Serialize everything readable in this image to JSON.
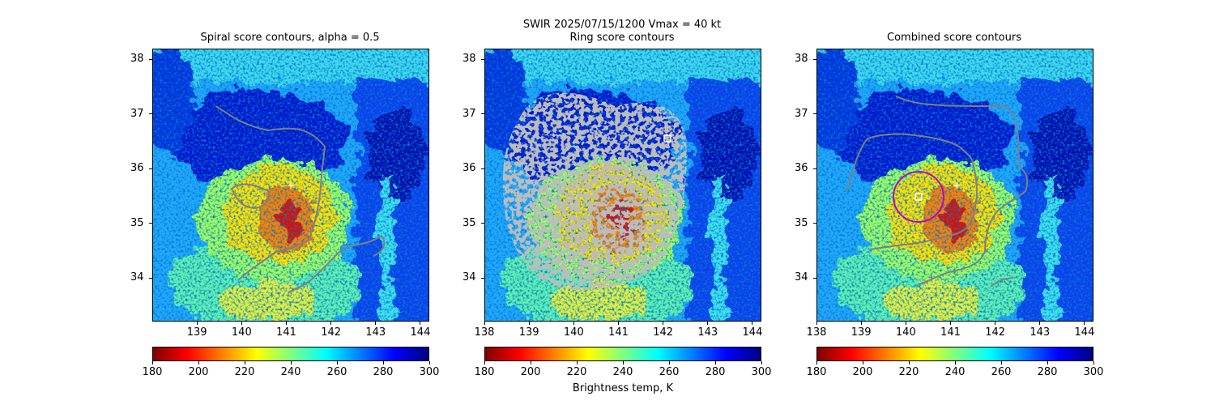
{
  "suptitle": "SWIR  2025/07/15/1200    Vmax = 40 kt",
  "chart_data": [
    {
      "type": "heatmap",
      "title": "Spiral score contours, alpha =  0.5",
      "xlim": [
        138,
        144.2
      ],
      "ylim": [
        33.2,
        38.2
      ],
      "xticks": [
        "139",
        "140",
        "141",
        "142",
        "143",
        "144"
      ],
      "yticks": [
        "34",
        "35",
        "36",
        "37",
        "38"
      ],
      "overlays": [
        "gray contour lines",
        "center marker (+) near 141.1E, 35.7N"
      ]
    },
    {
      "type": "heatmap",
      "title": "Ring score contours",
      "xlim": [
        138,
        144.2
      ],
      "ylim": [
        33.2,
        38.2
      ],
      "xticks": [
        "138",
        "139",
        "140",
        "141",
        "142",
        "143",
        "144"
      ],
      "yticks": [
        "34",
        "35",
        "36",
        "37",
        "38"
      ],
      "overlays": [
        "dense ring score contours",
        "square marker near 142.1E, 36.6N"
      ]
    },
    {
      "type": "heatmap",
      "title": "Combined score contours",
      "xlim": [
        138,
        144.2
      ],
      "ylim": [
        33.2,
        38.2
      ],
      "xticks": [
        "138",
        "139",
        "140",
        "141",
        "142",
        "143",
        "144"
      ],
      "yticks": [
        "34",
        "35",
        "36",
        "37",
        "38"
      ],
      "overlays": [
        "gray contour lines",
        "magenta circle centered near 140.3E, 35.5N",
        "square marker near 140.3E, 35.5N",
        "plus marker near 141.1E, 35.7N"
      ]
    }
  ],
  "colorbar": {
    "label": "Brightness temp, K",
    "range": [
      180,
      300
    ],
    "ticks": [
      "180",
      "200",
      "220",
      "240",
      "260",
      "280",
      "300"
    ],
    "colormap": "jet_r"
  },
  "colors": {
    "contour": "#808080",
    "circle": "#c000c0",
    "marker": "#ffffff"
  }
}
